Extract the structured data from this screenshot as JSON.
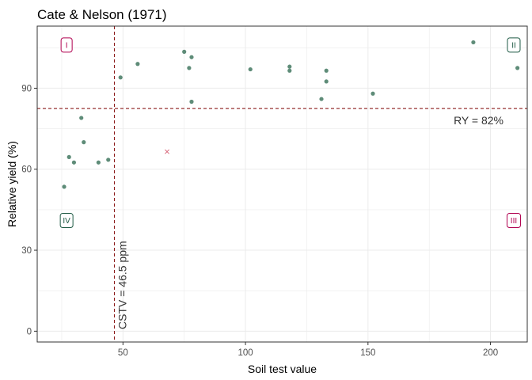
{
  "chart_data": {
    "type": "scatter",
    "title": "Cate & Nelson (1971)",
    "xlabel": "Soil test value",
    "ylabel": "Relative yield (%)",
    "xlim": [
      15,
      215
    ],
    "ylim": [
      -4,
      113
    ],
    "x_ticks": [
      50,
      100,
      150,
      200
    ],
    "y_ticks": [
      0,
      30,
      60,
      90
    ],
    "grid": true,
    "points": [
      {
        "x": 26,
        "y": 53.5
      },
      {
        "x": 28,
        "y": 64.5
      },
      {
        "x": 30,
        "y": 62.5
      },
      {
        "x": 33,
        "y": 79
      },
      {
        "x": 34,
        "y": 70
      },
      {
        "x": 40,
        "y": 62.5
      },
      {
        "x": 44,
        "y": 63.5
      },
      {
        "x": 49,
        "y": 94
      },
      {
        "x": 56,
        "y": 99
      },
      {
        "x": 75,
        "y": 103.5
      },
      {
        "x": 77,
        "y": 97.5
      },
      {
        "x": 78,
        "y": 101.5
      },
      {
        "x": 78,
        "y": 85
      },
      {
        "x": 102,
        "y": 97
      },
      {
        "x": 118,
        "y": 98
      },
      {
        "x": 118,
        "y": 96.5
      },
      {
        "x": 131,
        "y": 86
      },
      {
        "x": 133,
        "y": 96.5
      },
      {
        "x": 133,
        "y": 92.5
      },
      {
        "x": 152,
        "y": 88
      },
      {
        "x": 193,
        "y": 107
      },
      {
        "x": 211,
        "y": 97.5
      }
    ],
    "outliers": [
      {
        "x": 68,
        "y": 66.5
      }
    ],
    "cstv": 46.5,
    "ry_threshold": 82.5,
    "cstv_label": "CSTV = 46.5 ppm",
    "ry_label": "RY = 82%",
    "quadrants": [
      {
        "label": "I",
        "x": 27,
        "y": 106,
        "color": "#b0004f"
      },
      {
        "label": "II",
        "x": 209.5,
        "y": 106,
        "color": "#1e5a44"
      },
      {
        "label": "III",
        "x": 209.5,
        "y": 41,
        "color": "#b0004f"
      },
      {
        "label": "IV",
        "x": 27,
        "y": 41,
        "color": "#1e5a44"
      }
    ],
    "colors": {
      "point": "#5e8c78",
      "outlier": "#d96b7e",
      "threshold_line": "#8b1a1a",
      "grid": "#ebebeb",
      "panel_border": "#333333"
    }
  }
}
